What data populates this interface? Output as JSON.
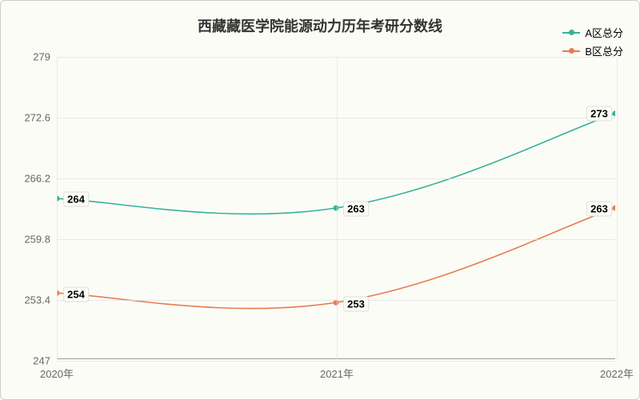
{
  "chart": {
    "type": "line",
    "title": "西藏藏医学院能源动力历年考研分数线",
    "title_fontsize": 18,
    "title_color": "#333333",
    "background_color": "#fcfcf7",
    "grid_color": "#e0e0e0",
    "axis_label_color": "#666666",
    "axis_label_fontsize": 13,
    "data_label_fontsize": 13,
    "data_label_bg": "#fcfcf7",
    "ylim": [
      247,
      279
    ],
    "yticks": [
      247,
      253.4,
      259.8,
      266.2,
      272.6,
      279
    ],
    "xcategories": [
      "2020年",
      "2021年",
      "2022年"
    ],
    "line_width": 1.6,
    "marker_radius": 3.5,
    "legend": {
      "position": "top-right",
      "fontsize": 13,
      "items": [
        {
          "label": "A区总分",
          "color": "#33b39a"
        },
        {
          "label": "B区总分",
          "color": "#e67c52"
        }
      ]
    },
    "series": [
      {
        "name": "A区总分",
        "color": "#33b39a",
        "values": [
          264,
          263,
          273
        ],
        "smooth": true
      },
      {
        "name": "B区总分",
        "color": "#e67c52",
        "values": [
          254,
          253,
          263
        ],
        "smooth": true
      }
    ]
  }
}
